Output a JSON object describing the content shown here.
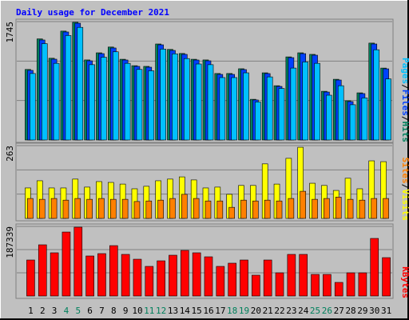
{
  "chart_data": [
    {
      "type": "bar",
      "title": "Daily usage for December 2021",
      "title_color": "#0000ff",
      "ylim": [
        0,
        1745
      ],
      "yticks": [
        1745
      ],
      "legend_separator": "/",
      "series": [
        {
          "name": "Hits",
          "color": "#00805c",
          "values": [
            1040,
            1490,
            1205,
            1605,
            1735,
            1180,
            1285,
            1370,
            1190,
            1095,
            1085,
            1415,
            1335,
            1275,
            1190,
            1180,
            980,
            980,
            1050,
            600,
            990,
            800,
            1225,
            1285,
            1262,
            718,
            895,
            578,
            695,
            1428,
            1060
          ]
        },
        {
          "name": "Files",
          "color": "#0040ff",
          "values": [
            1026,
            1474,
            1191,
            1592,
            1721,
            1167,
            1273,
            1356,
            1179,
            1085,
            1073,
            1403,
            1320,
            1262,
            1179,
            1167,
            967,
            967,
            1038,
            590,
            979,
            790,
            1214,
            1273,
            1250,
            707,
            884,
            566,
            684,
            1415,
            1049
          ]
        },
        {
          "name": "Pages",
          "color": "#00c0ff",
          "values": [
            980,
            1420,
            1130,
            1540,
            1660,
            1110,
            1220,
            1300,
            1130,
            1040,
            1020,
            1340,
            1270,
            1200,
            1120,
            1110,
            920,
            920,
            990,
            560,
            930,
            760,
            1060,
            1150,
            1130,
            660,
            800,
            520,
            620,
            1330,
            900
          ]
        }
      ]
    },
    {
      "type": "bar",
      "ylim": [
        0,
        263
      ],
      "yticks": [
        263
      ],
      "legend_separator": "/",
      "series": [
        {
          "name": "Visits",
          "color": "#ffff00",
          "values": [
            110,
            136,
            110,
            110,
            142,
            113,
            133,
            130,
            124,
            107,
            116,
            136,
            142,
            150,
            139,
            110,
            113,
            87,
            119,
            119,
            197,
            124,
            217,
            257,
            127,
            119,
            101,
            145,
            107,
            208,
            205
          ]
        },
        {
          "name": "Sites",
          "color": "#ff8000",
          "values": [
            72,
            69,
            72,
            66,
            72,
            69,
            72,
            69,
            69,
            61,
            63,
            66,
            72,
            87,
            72,
            63,
            63,
            40,
            66,
            63,
            66,
            63,
            72,
            98,
            69,
            72,
            77,
            69,
            66,
            72,
            72
          ]
        }
      ]
    },
    {
      "type": "bar",
      "ylim": [
        0,
        187339
      ],
      "yticks": [
        187339
      ],
      "categories": [
        "1",
        "2",
        "3",
        "4",
        "5",
        "6",
        "7",
        "8",
        "9",
        "10",
        "11",
        "12",
        "13",
        "14",
        "15",
        "16",
        "17",
        "18",
        "19",
        "20",
        "21",
        "22",
        "23",
        "24",
        "25",
        "26",
        "27",
        "28",
        "29",
        "30",
        "31"
      ],
      "category_colors": [
        "#000000",
        "#000000",
        "#000000",
        "#00805c",
        "#00805c",
        "#000000",
        "#000000",
        "#000000",
        "#000000",
        "#000000",
        "#00805c",
        "#00805c",
        "#000000",
        "#000000",
        "#000000",
        "#000000",
        "#000000",
        "#00805c",
        "#00805c",
        "#000000",
        "#000000",
        "#000000",
        "#000000",
        "#000000",
        "#00805c",
        "#00805c",
        "#000000",
        "#000000",
        "#000000",
        "#000000",
        "#000000"
      ],
      "series": [
        {
          "name": "KBytes",
          "color": "#ff0000",
          "values": [
            96900,
            137800,
            116300,
            172200,
            185200,
            107700,
            114100,
            135600,
            112000,
            99000,
            79700,
            94700,
            109800,
            122700,
            116300,
            105500,
            79700,
            88300,
            96900,
            56000,
            96900,
            62400,
            112000,
            112000,
            58100,
            58100,
            36600,
            62400,
            62400,
            155000,
            103300
          ]
        }
      ]
    }
  ]
}
